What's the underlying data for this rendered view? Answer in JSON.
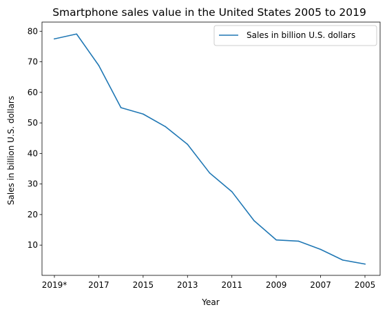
{
  "chart_data": {
    "type": "line",
    "title": "Smartphone sales value in the United States 2005 to 2019",
    "xlabel": "Year",
    "ylabel": "Sales in billion U.S. dollars",
    "categories": [
      "2019*",
      "2018",
      "2017",
      "2016",
      "2015",
      "2014",
      "2013",
      "2012",
      "2011",
      "2010",
      "2009",
      "2008",
      "2007",
      "2006",
      "2005"
    ],
    "x_tick_labels": [
      "2019*",
      "2017",
      "2015",
      "2013",
      "2011",
      "2009",
      "2007",
      "2005"
    ],
    "y_ticks": [
      10,
      20,
      30,
      40,
      50,
      60,
      70,
      80
    ],
    "ylim": [
      0.1,
      83.0
    ],
    "series": [
      {
        "name": "Sales in billion U.S. dollars",
        "color": "#1f77b4",
        "values": [
          77.5,
          79.1,
          68.8,
          55.0,
          52.9,
          48.8,
          43.0,
          33.6,
          27.5,
          18.0,
          11.7,
          11.3,
          8.6,
          5.1,
          3.8
        ]
      }
    ],
    "legend_position": "top-right",
    "grid": false
  }
}
